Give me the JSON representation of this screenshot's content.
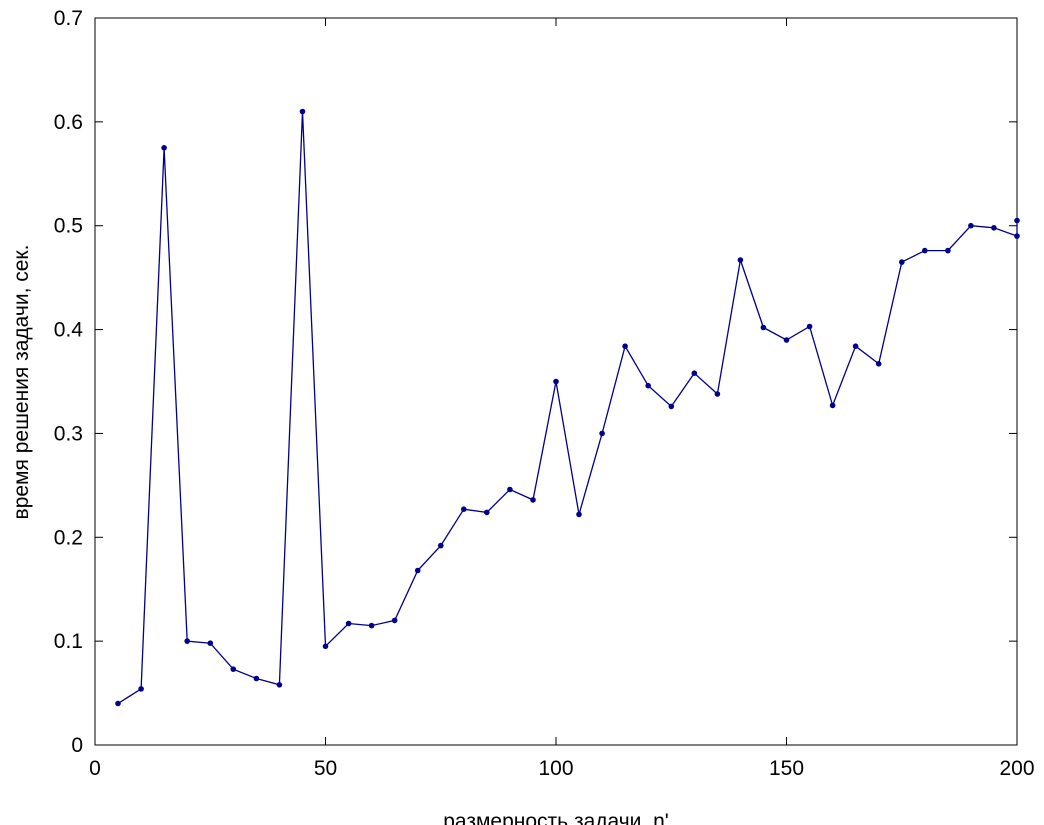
{
  "chart_data": {
    "type": "line",
    "title": "",
    "xlabel": "размерность задачи, n'",
    "ylabel": "время решения задачи, сек.",
    "xlim": [
      0,
      200
    ],
    "ylim": [
      0,
      0.7
    ],
    "xticks": [
      0,
      50,
      100,
      150,
      200
    ],
    "xtick_labels": [
      "0",
      "50",
      "100",
      "150",
      "200"
    ],
    "yticks": [
      0,
      0.1,
      0.2,
      0.3,
      0.4,
      0.5,
      0.6,
      0.7
    ],
    "ytick_labels": [
      "0",
      "0.1",
      "0.2",
      "0.3",
      "0.4",
      "0.5",
      "0.6",
      "0.7"
    ],
    "grid": false,
    "series": [
      {
        "color": "#00008b",
        "marker": "dot",
        "x": [
          5,
          10,
          15,
          20,
          25,
          30,
          35,
          40,
          45,
          50,
          55,
          60,
          65,
          70,
          75,
          80,
          85,
          90,
          95,
          100,
          105,
          110,
          115,
          120,
          125,
          130,
          135,
          140,
          145,
          150,
          155,
          160,
          165,
          170,
          175,
          180,
          185,
          190,
          195,
          200,
          200
        ],
        "y": [
          0.04,
          0.054,
          0.575,
          0.1,
          0.098,
          0.073,
          0.064,
          0.058,
          0.61,
          0.095,
          0.117,
          0.115,
          0.12,
          0.168,
          0.192,
          0.227,
          0.224,
          0.246,
          0.236,
          0.35,
          0.222,
          0.3,
          0.384,
          0.346,
          0.326,
          0.358,
          0.338,
          0.467,
          0.402,
          0.39,
          0.403,
          0.327,
          0.384,
          0.367,
          0.465,
          0.476,
          0.476,
          0.5,
          0.498,
          0.49,
          0.505
        ]
      }
    ]
  }
}
